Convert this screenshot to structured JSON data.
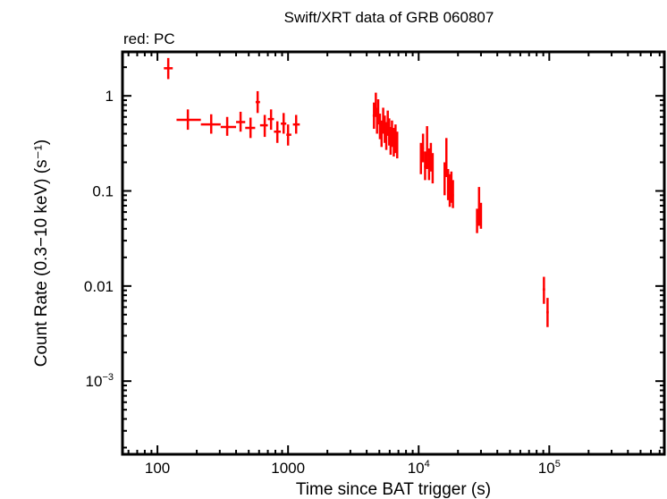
{
  "chart_data": {
    "type": "scatter",
    "title": "Swift/XRT data of GRB 060807",
    "subtitle": "red: PC",
    "xlabel": "Time since BAT trigger (s)",
    "ylabel": "Count Rate (0.3−10 keV) (s⁻¹)",
    "xscale": "log",
    "yscale": "log",
    "xlim": [
      54,
      760000
    ],
    "ylim": [
      0.00017,
      2.9
    ],
    "grid": false,
    "x_ticks": [
      {
        "value": 100,
        "label": "100"
      },
      {
        "value": 1000,
        "label": "1000"
      },
      {
        "value": 10000,
        "label": "10",
        "sup": "4"
      },
      {
        "value": 100000,
        "label": "10",
        "sup": "5"
      }
    ],
    "y_ticks": [
      {
        "value": 1,
        "label": "1"
      },
      {
        "value": 0.1,
        "label": "0.1"
      },
      {
        "value": 0.01,
        "label": "0.01"
      },
      {
        "value": 0.001,
        "label": "10",
        "sup": "−3"
      }
    ],
    "series": [
      {
        "color": "#ff0000",
        "points": [
          {
            "x": 121,
            "y": 1.95,
            "xerr": [
              112,
              131
            ],
            "yerr": [
              1.5,
              2.5
            ]
          },
          {
            "x": 171,
            "y": 0.56,
            "xerr": [
              140,
              215
            ],
            "yerr": [
              0.44,
              0.72
            ]
          },
          {
            "x": 258,
            "y": 0.5,
            "xerr": [
              215,
              305
            ],
            "yerr": [
              0.4,
              0.64
            ]
          },
          {
            "x": 342,
            "y": 0.47,
            "xerr": [
              305,
              400
            ],
            "yerr": [
              0.38,
              0.6
            ]
          },
          {
            "x": 433,
            "y": 0.53,
            "xerr": [
              400,
              470
            ],
            "yerr": [
              0.42,
              0.68
            ]
          },
          {
            "x": 516,
            "y": 0.46,
            "xerr": [
              470,
              560
            ],
            "yerr": [
              0.36,
              0.59
            ]
          },
          {
            "x": 585,
            "y": 0.86,
            "xerr": [
              565,
              610
            ],
            "yerr": [
              0.66,
              1.12
            ]
          },
          {
            "x": 663,
            "y": 0.49,
            "xerr": [
              610,
              700
            ],
            "yerr": [
              0.37,
              0.63
            ]
          },
          {
            "x": 741,
            "y": 0.57,
            "xerr": [
              700,
              780
            ],
            "yerr": [
              0.44,
              0.72
            ]
          },
          {
            "x": 828,
            "y": 0.42,
            "xerr": [
              780,
              880
            ],
            "yerr": [
              0.32,
              0.54
            ]
          },
          {
            "x": 925,
            "y": 0.51,
            "xerr": [
              880,
              970
            ],
            "yerr": [
              0.4,
              0.66
            ]
          },
          {
            "x": 1000,
            "y": 0.39,
            "xerr": [
              970,
              1060
            ],
            "yerr": [
              0.3,
              0.5
            ]
          },
          {
            "x": 1153,
            "y": 0.5,
            "xerr": [
              1090,
              1230
            ],
            "yerr": [
              0.4,
              0.63
            ]
          },
          {
            "x": 4550,
            "y": 0.62,
            "xerr": [
              4450,
              4650
            ],
            "yerr": [
              0.45,
              0.85
            ]
          },
          {
            "x": 4700,
            "y": 0.8,
            "xerr": [
              4650,
              4750
            ],
            "yerr": [
              0.6,
              1.08
            ]
          },
          {
            "x": 4800,
            "y": 0.55,
            "xerr": [
              4750,
              4850
            ],
            "yerr": [
              0.4,
              0.75
            ]
          },
          {
            "x": 4900,
            "y": 0.68,
            "xerr": [
              4850,
              4950
            ],
            "yerr": [
              0.5,
              0.92
            ]
          },
          {
            "x": 5050,
            "y": 0.48,
            "xerr": [
              4980,
              5120
            ],
            "yerr": [
              0.35,
              0.65
            ]
          },
          {
            "x": 5200,
            "y": 0.4,
            "xerr": [
              5130,
              5270
            ],
            "yerr": [
              0.29,
              0.55
            ]
          },
          {
            "x": 5350,
            "y": 0.55,
            "xerr": [
              5280,
              5420
            ],
            "yerr": [
              0.4,
              0.75
            ]
          },
          {
            "x": 5500,
            "y": 0.45,
            "xerr": [
              5430,
              5570
            ],
            "yerr": [
              0.32,
              0.62
            ]
          },
          {
            "x": 5650,
            "y": 0.38,
            "xerr": [
              5580,
              5720
            ],
            "yerr": [
              0.27,
              0.53
            ]
          },
          {
            "x": 5800,
            "y": 0.52,
            "xerr": [
              5730,
              5870
            ],
            "yerr": [
              0.38,
              0.7
            ]
          },
          {
            "x": 5950,
            "y": 0.42,
            "xerr": [
              5880,
              6020
            ],
            "yerr": [
              0.3,
              0.58
            ]
          },
          {
            "x": 6100,
            "y": 0.34,
            "xerr": [
              6030,
              6170
            ],
            "yerr": [
              0.24,
              0.47
            ]
          },
          {
            "x": 6250,
            "y": 0.4,
            "xerr": [
              6180,
              6320
            ],
            "yerr": [
              0.29,
              0.55
            ]
          },
          {
            "x": 6450,
            "y": 0.33,
            "xerr": [
              6350,
              6550
            ],
            "yerr": [
              0.23,
              0.46
            ]
          },
          {
            "x": 6650,
            "y": 0.36,
            "xerr": [
              6550,
              6750
            ],
            "yerr": [
              0.25,
              0.5
            ]
          },
          {
            "x": 6850,
            "y": 0.3,
            "xerr": [
              6750,
              6950
            ],
            "yerr": [
              0.22,
              0.42
            ]
          },
          {
            "x": 10400,
            "y": 0.22,
            "xerr": [
              10200,
              10600
            ],
            "yerr": [
              0.15,
              0.32
            ]
          },
          {
            "x": 10800,
            "y": 0.28,
            "xerr": [
              10600,
              11000
            ],
            "yerr": [
              0.2,
              0.4
            ]
          },
          {
            "x": 11200,
            "y": 0.18,
            "xerr": [
              11000,
              11400
            ],
            "yerr": [
              0.13,
              0.26
            ]
          },
          {
            "x": 11600,
            "y": 0.24,
            "xerr": [
              11400,
              11800
            ],
            "yerr": [
              0.17,
              0.48
            ]
          },
          {
            "x": 12000,
            "y": 0.19,
            "xerr": [
              11800,
              12200
            ],
            "yerr": [
              0.13,
              0.28
            ]
          },
          {
            "x": 12400,
            "y": 0.22,
            "xerr": [
              12200,
              12600
            ],
            "yerr": [
              0.16,
              0.32
            ]
          },
          {
            "x": 12800,
            "y": 0.17,
            "xerr": [
              12600,
              13000
            ],
            "yerr": [
              0.12,
              0.25
            ]
          },
          {
            "x": 15800,
            "y": 0.14,
            "xerr": [
              15600,
              16000
            ],
            "yerr": [
              0.09,
              0.2
            ]
          },
          {
            "x": 16300,
            "y": 0.2,
            "xerr": [
              16100,
              16500
            ],
            "yerr": [
              0.14,
              0.36
            ]
          },
          {
            "x": 16800,
            "y": 0.12,
            "xerr": [
              16600,
              17000
            ],
            "yerr": [
              0.08,
              0.17
            ]
          },
          {
            "x": 17300,
            "y": 0.1,
            "xerr": [
              17100,
              17500
            ],
            "yerr": [
              0.068,
              0.15
            ]
          },
          {
            "x": 17800,
            "y": 0.11,
            "xerr": [
              17600,
              18000
            ],
            "yerr": [
              0.075,
              0.16
            ]
          },
          {
            "x": 18300,
            "y": 0.09,
            "xerr": [
              18100,
              18600
            ],
            "yerr": [
              0.066,
              0.13
            ]
          },
          {
            "x": 28000,
            "y": 0.048,
            "xerr": [
              27500,
              28500
            ],
            "yerr": [
              0.036,
              0.065
            ]
          },
          {
            "x": 29000,
            "y": 0.06,
            "xerr": [
              28500,
              29500
            ],
            "yerr": [
              0.043,
              0.11
            ]
          },
          {
            "x": 30000,
            "y": 0.055,
            "xerr": [
              29500,
              30500
            ],
            "yerr": [
              0.04,
              0.075
            ]
          },
          {
            "x": 91000,
            "y": 0.0092,
            "xerr": [
              89000,
              93000
            ],
            "yerr": [
              0.0065,
              0.0125
            ]
          },
          {
            "x": 97000,
            "y": 0.0053,
            "xerr": [
              95000,
              99000
            ],
            "yerr": [
              0.0037,
              0.0075
            ]
          }
        ]
      }
    ]
  }
}
